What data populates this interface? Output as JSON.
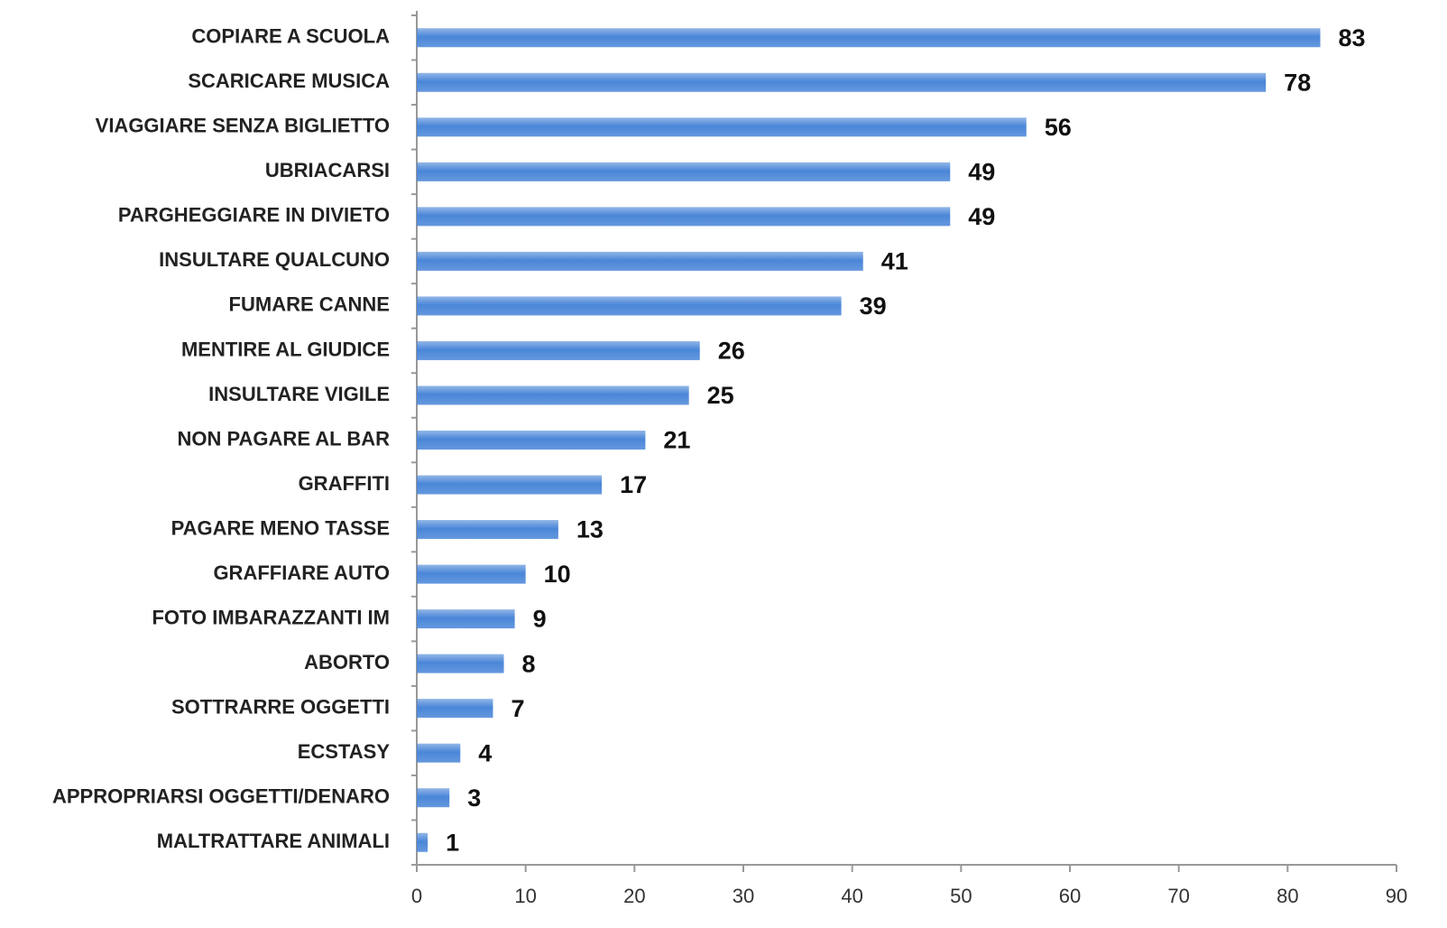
{
  "chart_data": {
    "type": "bar",
    "orientation": "horizontal",
    "categories": [
      "COPIARE A SCUOLA",
      "SCARICARE MUSICA",
      "VIAGGIARE SENZA BIGLIETTO",
      "UBRIACARSI",
      "PARGHEGGIARE IN DIVIETO",
      "INSULTARE QUALCUNO",
      "FUMARE CANNE",
      "MENTIRE AL GIUDICE",
      "INSULTARE VIGILE",
      "NON PAGARE AL BAR",
      "GRAFFITI",
      "PAGARE MENO TASSE",
      "GRAFFIARE AUTO",
      "FOTO IMBARAZZANTI IM",
      "ABORTO",
      "SOTTRARRE OGGETTI",
      "ECSTASY",
      "APPROPRIARSI OGGETTI/DENARO",
      "MALTRATTARE ANIMALI"
    ],
    "values": [
      83,
      78,
      56,
      49,
      49,
      41,
      39,
      26,
      25,
      21,
      17,
      13,
      10,
      9,
      8,
      7,
      4,
      3,
      1
    ],
    "color": "#4a86d8",
    "xlim": [
      0,
      90
    ],
    "xticks": [
      0,
      10,
      20,
      30,
      40,
      50,
      60,
      70,
      80,
      90
    ],
    "grid": false
  }
}
